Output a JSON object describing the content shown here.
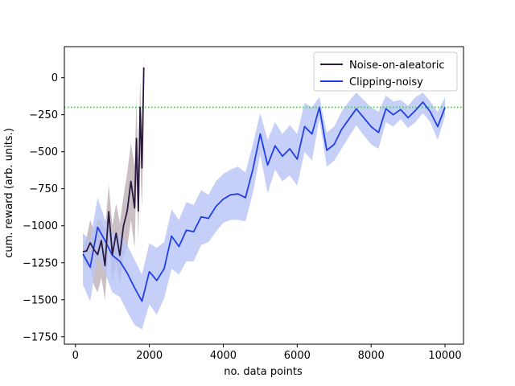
{
  "chart_data": {
    "type": "line",
    "xlabel": "no. data points",
    "ylabel": "cum. reward (arb. units.)",
    "xlim": [
      -300,
      10500
    ],
    "ylim": [
      -1800,
      210
    ],
    "xticks": [
      0,
      2000,
      4000,
      6000,
      8000,
      10000
    ],
    "yticks": [
      0,
      -250,
      -500,
      -750,
      -1000,
      -1250,
      -1500,
      -1750
    ],
    "xtick_labels": [
      "0",
      "2000",
      "4000",
      "6000",
      "8000",
      "10000"
    ],
    "ytick_labels": [
      "0",
      "−250",
      "−500",
      "−750",
      "−1000",
      "−1250",
      "−1500",
      "−1750"
    ],
    "threshold": {
      "y": -200,
      "color": "#22dd22",
      "style": "dotted"
    },
    "legend": {
      "placement": "top-right"
    },
    "series": [
      {
        "name": "Noise-on-aleatoric",
        "color": "#2b1a40",
        "band_color": "#b8a9b2",
        "x": [
          200,
          300,
          400,
          500,
          600,
          700,
          800,
          900,
          1000,
          1100,
          1200,
          1300,
          1400,
          1500,
          1600,
          1650,
          1700,
          1750,
          1800,
          1850
        ],
        "y": [
          -1175,
          -1170,
          -1115,
          -1160,
          -1195,
          -1100,
          -1270,
          -905,
          -1195,
          -1050,
          -1200,
          -1000,
          -900,
          -700,
          -880,
          -410,
          -900,
          -200,
          -610,
          70
        ],
        "lower": [
          -1230,
          -1270,
          -1280,
          -1400,
          -1450,
          -1350,
          -1500,
          -1100,
          -1380,
          -1250,
          -1400,
          -1200,
          -1150,
          -960,
          -1150,
          -680,
          -1100,
          -550,
          -880,
          -320
        ],
        "upper": [
          -1130,
          -1080,
          -960,
          -1030,
          -960,
          -960,
          -1030,
          -720,
          -1000,
          -850,
          -980,
          -800,
          -640,
          -440,
          -600,
          -130,
          -650,
          0,
          -350,
          140
        ]
      },
      {
        "name": "Clipping-noisy",
        "color": "#1f3ee8",
        "band_color": "#b7c3f5",
        "x": [
          200,
          400,
          600,
          800,
          1000,
          1200,
          1400,
          1600,
          1800,
          2000,
          2200,
          2400,
          2600,
          2800,
          3000,
          3200,
          3400,
          3600,
          3800,
          4000,
          4200,
          4400,
          4600,
          4800,
          5000,
          5200,
          5400,
          5600,
          5800,
          6000,
          6200,
          6400,
          6600,
          6800,
          7000,
          7200,
          7400,
          7600,
          7800,
          8000,
          8200,
          8400,
          8600,
          8800,
          9000,
          9200,
          9400,
          9600,
          9800,
          10000
        ],
        "y": [
          -1190,
          -1280,
          -1010,
          -1100,
          -1200,
          -1240,
          -1320,
          -1420,
          -1510,
          -1310,
          -1370,
          -1290,
          -1070,
          -1140,
          -1030,
          -1040,
          -940,
          -950,
          -870,
          -820,
          -790,
          -785,
          -810,
          -620,
          -380,
          -590,
          -460,
          -530,
          -480,
          -550,
          -330,
          -380,
          -200,
          -490,
          -450,
          -350,
          -280,
          -210,
          -270,
          -330,
          -370,
          -210,
          -250,
          -215,
          -270,
          -220,
          -165,
          -230,
          -330,
          -200
        ],
        "lower": [
          -1400,
          -1510,
          -1200,
          -1320,
          -1450,
          -1480,
          -1580,
          -1670,
          -1700,
          -1530,
          -1600,
          -1490,
          -1290,
          -1330,
          -1240,
          -1240,
          -1130,
          -1110,
          -1040,
          -980,
          -960,
          -960,
          -970,
          -780,
          -520,
          -780,
          -620,
          -700,
          -660,
          -730,
          -500,
          -560,
          -280,
          -600,
          -560,
          -480,
          -400,
          -320,
          -390,
          -450,
          -480,
          -300,
          -330,
          -280,
          -340,
          -300,
          -240,
          -300,
          -420,
          -260
        ],
        "upper": [
          -1050,
          -1100,
          -810,
          -960,
          -1050,
          -1060,
          -1130,
          -1230,
          -1330,
          -1120,
          -1150,
          -1110,
          -890,
          -960,
          -840,
          -860,
          -760,
          -790,
          -700,
          -650,
          -620,
          -600,
          -640,
          -450,
          -240,
          -420,
          -300,
          -380,
          -320,
          -380,
          -170,
          -200,
          -130,
          -370,
          -330,
          -230,
          -160,
          -100,
          -150,
          -200,
          -230,
          -120,
          -160,
          -150,
          -190,
          -130,
          -100,
          -160,
          -230,
          -130
        ]
      }
    ]
  }
}
